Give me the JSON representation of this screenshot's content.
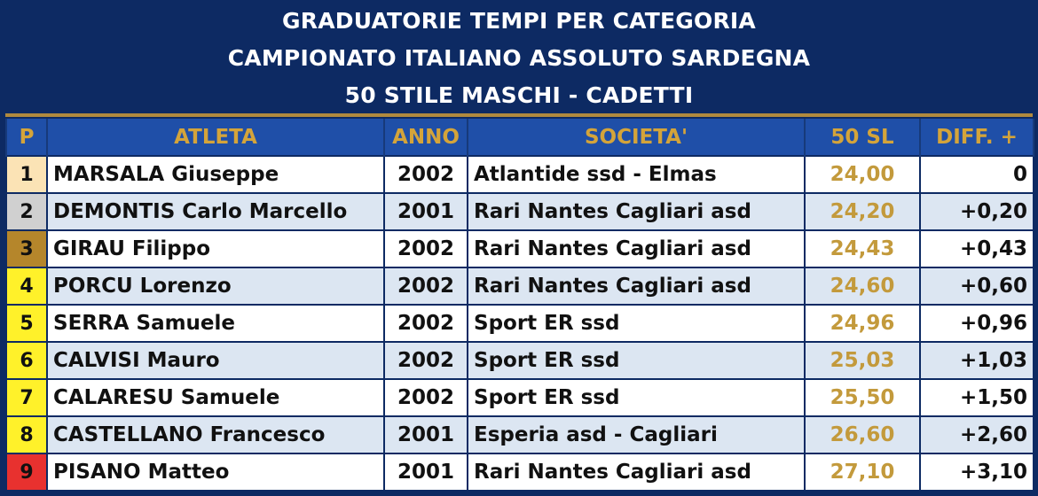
{
  "title": {
    "line1": "GRADUATORIE TEMPI PER CATEGORIA",
    "line2": "CAMPIONATO ITALIANO ASSOLUTO SARDEGNA",
    "line3": "50 STILE MASCHI - CADETTI"
  },
  "table": {
    "headers": {
      "p": "P",
      "atleta": "ATLETA",
      "anno": "ANNO",
      "societa": "SOCIETA'",
      "tempo": "50 SL",
      "diff": "DIFF. +"
    },
    "rows": [
      {
        "p": "1",
        "atleta": "MARSALA Giuseppe",
        "anno": "2002",
        "societa": "Atlantide ssd - Elmas",
        "tempo": "24,00",
        "diff": "0",
        "pos_color": "#fbe3b5"
      },
      {
        "p": "2",
        "atleta": "DEMONTIS Carlo Marcello",
        "anno": "2001",
        "societa": "Rari Nantes Cagliari asd",
        "tempo": "24,20",
        "diff": "+0,20",
        "pos_color": "#d0d0d0"
      },
      {
        "p": "3",
        "atleta": "GIRAU Filippo",
        "anno": "2002",
        "societa": "Rari Nantes Cagliari asd",
        "tempo": "24,43",
        "diff": "+0,43",
        "pos_color": "#b5862b"
      },
      {
        "p": "4",
        "atleta": "PORCU Lorenzo",
        "anno": "2002",
        "societa": "Rari Nantes Cagliari asd",
        "tempo": "24,60",
        "diff": "+0,60",
        "pos_color": "#fff12a"
      },
      {
        "p": "5",
        "atleta": "SERRA Samuele",
        "anno": "2002",
        "societa": "Sport ER ssd",
        "tempo": "24,96",
        "diff": "+0,96",
        "pos_color": "#fff12a"
      },
      {
        "p": "6",
        "atleta": "CALVISI Mauro",
        "anno": "2002",
        "societa": "Sport ER ssd",
        "tempo": "25,03",
        "diff": "+1,03",
        "pos_color": "#fff12a"
      },
      {
        "p": "7",
        "atleta": "CALARESU Samuele",
        "anno": "2002",
        "societa": "Sport ER ssd",
        "tempo": "25,50",
        "diff": "+1,50",
        "pos_color": "#fff12a"
      },
      {
        "p": "8",
        "atleta": "CASTELLANO Francesco",
        "anno": "2001",
        "societa": "Esperia asd - Cagliari",
        "tempo": "26,60",
        "diff": "+2,60",
        "pos_color": "#fff12a"
      },
      {
        "p": "9",
        "atleta": "PISANO Matteo",
        "anno": "2001",
        "societa": "Rari Nantes Cagliari asd",
        "tempo": "27,10",
        "diff": "+3,10",
        "pos_color": "#e8312f"
      }
    ]
  }
}
